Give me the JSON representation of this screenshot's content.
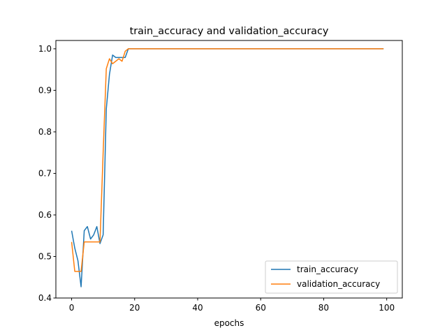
{
  "chart_data": {
    "type": "line",
    "title": "train_accuracy and validation_accuracy",
    "xlabel": "epochs",
    "ylabel": "",
    "xlim": [
      -5,
      104.95
    ],
    "ylim": [
      0.4,
      1.02
    ],
    "x_ticks": [
      0,
      20,
      40,
      60,
      80,
      100
    ],
    "y_ticks": [
      0.4,
      0.5,
      0.6,
      0.7,
      0.8,
      0.9,
      1.0
    ],
    "x_tick_labels": [
      "0",
      "20",
      "40",
      "60",
      "80",
      "100"
    ],
    "y_tick_labels": [
      "0.4",
      "0.5",
      "0.6",
      "0.7",
      "0.8",
      "0.9",
      "1.0"
    ],
    "grid": false,
    "legend_position": "lower-right",
    "series": [
      {
        "name": "train_accuracy",
        "color": "#1f77b4",
        "x": [
          0,
          1,
          2,
          3,
          4,
          5,
          6,
          7,
          8,
          9,
          10,
          11,
          12,
          13,
          14,
          15,
          16,
          17,
          18,
          99
        ],
        "y": [
          0.562,
          0.52,
          0.49,
          0.427,
          0.562,
          0.572,
          0.542,
          0.552,
          0.572,
          0.531,
          0.552,
          0.855,
          0.938,
          0.985,
          0.979,
          0.979,
          0.979,
          0.979,
          1.0,
          1.0
        ]
      },
      {
        "name": "validation_accuracy",
        "color": "#ff7f0e",
        "x": [
          0,
          1,
          2,
          3,
          4,
          5,
          6,
          7,
          8,
          9,
          10,
          11,
          12,
          13,
          14,
          15,
          16,
          17,
          18,
          99
        ],
        "y": [
          0.535,
          0.464,
          0.464,
          0.464,
          0.535,
          0.535,
          0.535,
          0.535,
          0.535,
          0.535,
          0.75,
          0.952,
          0.976,
          0.964,
          0.97,
          0.976,
          0.97,
          0.994,
          1.0,
          1.0
        ]
      }
    ]
  }
}
